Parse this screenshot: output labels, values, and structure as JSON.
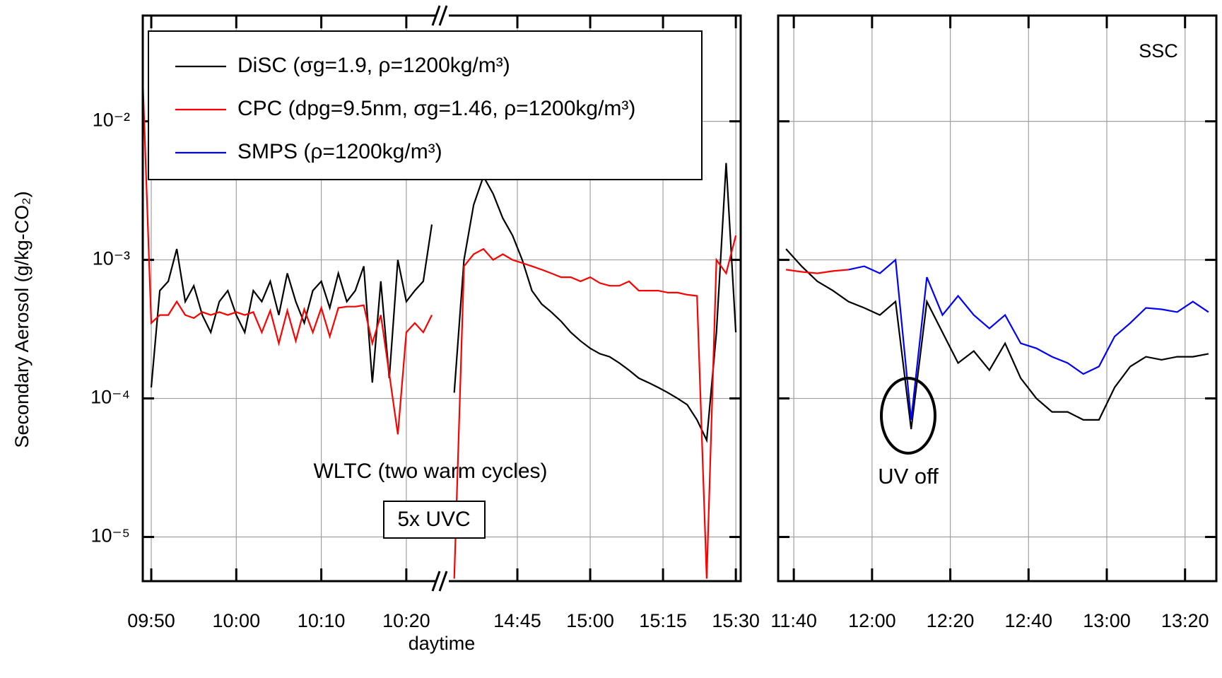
{
  "chart_data": [
    {
      "type": "line",
      "y_label": "Secondary Aerosol (g/kg-CO₂)",
      "x_label": "daytime",
      "log_y": true,
      "grid": true,
      "legend": {
        "corner": "top-left",
        "entries": [
          {
            "name": "DiSC (σg=1.9, ρ=1200kg/m³)",
            "color": "#000000"
          },
          {
            "name": "CPC (dpg=9.5nm, σg=1.46, ρ=1200kg/m³)",
            "color": "#ff0000"
          },
          {
            "name": "SMPS (ρ=1200kg/m³)",
            "color": "#0000ff"
          }
        ]
      },
      "annotations": [
        "WLTC (two warm cycles)",
        "5x UVC"
      ],
      "xlim": [
        "09:49",
        "10:24"
      ],
      "xticks": [
        "09:50",
        "10:00",
        "10:10",
        "10:20"
      ],
      "ylim": [
        4.8e-06,
        0.058
      ],
      "yticks": [
        {
          "value": 0.01,
          "label": "10⁻²"
        },
        {
          "value": 0.001,
          "label": "10⁻³"
        },
        {
          "value": 0.0001,
          "label": "10⁻⁴"
        },
        {
          "value": 1e-05,
          "label": "10⁻⁵"
        }
      ],
      "x": [
        "09:49",
        "09:50",
        "09:51",
        "09:52",
        "09:53",
        "09:54",
        "09:55",
        "09:56",
        "09:57",
        "09:58",
        "09:59",
        "10:00",
        "10:01",
        "10:02",
        "10:03",
        "10:04",
        "10:05",
        "10:06",
        "10:07",
        "10:08",
        "10:09",
        "10:10",
        "10:11",
        "10:12",
        "10:13",
        "10:14",
        "10:15",
        "10:16",
        "10:17",
        "10:18",
        "10:19",
        "10:20",
        "10:21",
        "10:22",
        "10:23",
        "10:24"
      ],
      "series": [
        {
          "color": "#000000",
          "values": [
            null,
            0.00012,
            0.0006,
            0.0007,
            0.0012,
            0.0005,
            0.00065,
            0.0004,
            0.0003,
            0.0005,
            0.0006,
            0.0004,
            0.0003,
            0.0006,
            0.0005,
            0.0007,
            0.0004,
            0.0008,
            0.0005,
            0.00035,
            0.0006,
            0.0007,
            0.00045,
            0.0008,
            0.0005,
            0.0006,
            0.0009,
            0.00013,
            0.0007,
            0.00014,
            0.001,
            0.0005,
            0.0006,
            0.0007,
            0.0018,
            null
          ]
        },
        {
          "color": "#ff0000",
          "values": [
            0.02,
            0.00035,
            0.0004,
            0.0004,
            0.0005,
            0.0004,
            0.00038,
            0.00042,
            0.0004,
            0.00042,
            0.0004,
            0.00042,
            0.0004,
            0.00042,
            0.0003,
            0.00043,
            0.00025,
            0.00043,
            0.00026,
            0.00044,
            0.0003,
            0.00045,
            0.00028,
            0.00045,
            0.00046,
            0.00046,
            0.00047,
            0.00025,
            0.0004,
            0.00015,
            5.5e-05,
            0.0003,
            0.00035,
            0.0003,
            0.0004,
            null
          ]
        }
      ]
    },
    {
      "type": "line",
      "xlim": [
        "14:30",
        "15:31"
      ],
      "xticks": [
        "14:45",
        "15:00",
        "15:15",
        "15:30"
      ],
      "ylim": [
        4.8e-06,
        0.058
      ],
      "x": [
        "14:32",
        "14:34",
        "14:36",
        "14:38",
        "14:40",
        "14:42",
        "14:44",
        "14:46",
        "14:48",
        "14:50",
        "14:52",
        "14:54",
        "14:56",
        "14:58",
        "15:00",
        "15:02",
        "15:04",
        "15:06",
        "15:08",
        "15:10",
        "15:12",
        "15:14",
        "15:16",
        "15:18",
        "15:20",
        "15:22",
        "15:24",
        "15:26",
        "15:28",
        "15:30"
      ],
      "series": [
        {
          "color": "#000000",
          "values": [
            0.00011,
            0.001,
            0.0025,
            0.004,
            0.003,
            0.002,
            0.0015,
            0.001,
            0.0006,
            0.00048,
            0.00042,
            0.00036,
            0.0003,
            0.00026,
            0.00023,
            0.00021,
            0.0002,
            0.00018,
            0.00016,
            0.00014,
            0.00013,
            0.00012,
            0.00011,
            0.0001,
            9e-05,
            7e-05,
            5e-05,
            0.0003,
            0.005,
            0.0003
          ]
        },
        {
          "color": "#ff0000",
          "values": [
            5e-06,
            0.0009,
            0.0011,
            0.0012,
            0.001,
            0.0011,
            0.001,
            0.00095,
            0.0009,
            0.00085,
            0.0008,
            0.00075,
            0.00075,
            0.0007,
            0.00075,
            0.00068,
            0.00065,
            0.00065,
            0.0007,
            0.0006,
            0.0006,
            0.0006,
            0.00058,
            0.00058,
            0.00056,
            0.00055,
            5e-06,
            0.001,
            0.0008,
            0.0015
          ]
        }
      ]
    },
    {
      "type": "line",
      "annotations": [
        "SSC",
        "UV off"
      ],
      "xlim": [
        "11:36",
        "13:28"
      ],
      "xticks": [
        "11:40",
        "12:00",
        "12:20",
        "12:40",
        "13:00",
        "13:20"
      ],
      "ylim": [
        4.8e-06,
        0.058
      ],
      "yticks": [
        0.01,
        0.001,
        0.0001,
        1e-05
      ],
      "x": [
        "11:38",
        "11:42",
        "11:46",
        "11:50",
        "11:54",
        "11:58",
        "12:02",
        "12:06",
        "12:10",
        "12:14",
        "12:18",
        "12:22",
        "12:26",
        "12:30",
        "12:34",
        "12:38",
        "12:42",
        "12:46",
        "12:50",
        "12:54",
        "12:58",
        "13:02",
        "13:06",
        "13:10",
        "13:14",
        "13:18",
        "13:22",
        "13:26"
      ],
      "series": [
        {
          "color": "#000000",
          "values": [
            0.0012,
            0.0009,
            0.0007,
            0.0006,
            0.0005,
            0.00045,
            0.0004,
            0.0005,
            6e-05,
            0.0005,
            0.0003,
            0.00018,
            0.00022,
            0.00016,
            0.00025,
            0.00014,
            0.0001,
            8e-05,
            8e-05,
            7e-05,
            7e-05,
            0.00012,
            0.00017,
            0.0002,
            0.00019,
            0.0002,
            0.0002,
            0.00021
          ]
        },
        {
          "color": "#ff0000",
          "values": [
            0.00085,
            0.00082,
            0.0008,
            0.00083,
            0.00085,
            null,
            null,
            null,
            null,
            null,
            null,
            null,
            null,
            null,
            null,
            null,
            null,
            null,
            null,
            null,
            null,
            null,
            null,
            null,
            null,
            null,
            null,
            null
          ]
        },
        {
          "color": "#0000ff",
          "values": [
            null,
            null,
            null,
            null,
            0.00085,
            0.0009,
            0.0008,
            0.001,
            7e-05,
            0.00075,
            0.0004,
            0.00055,
            0.0004,
            0.00032,
            0.0004,
            0.00025,
            0.00023,
            0.0002,
            0.00018,
            0.00015,
            0.00017,
            0.00028,
            0.00035,
            0.00045,
            0.00044,
            0.00042,
            0.0005,
            0.00042
          ]
        }
      ]
    }
  ]
}
